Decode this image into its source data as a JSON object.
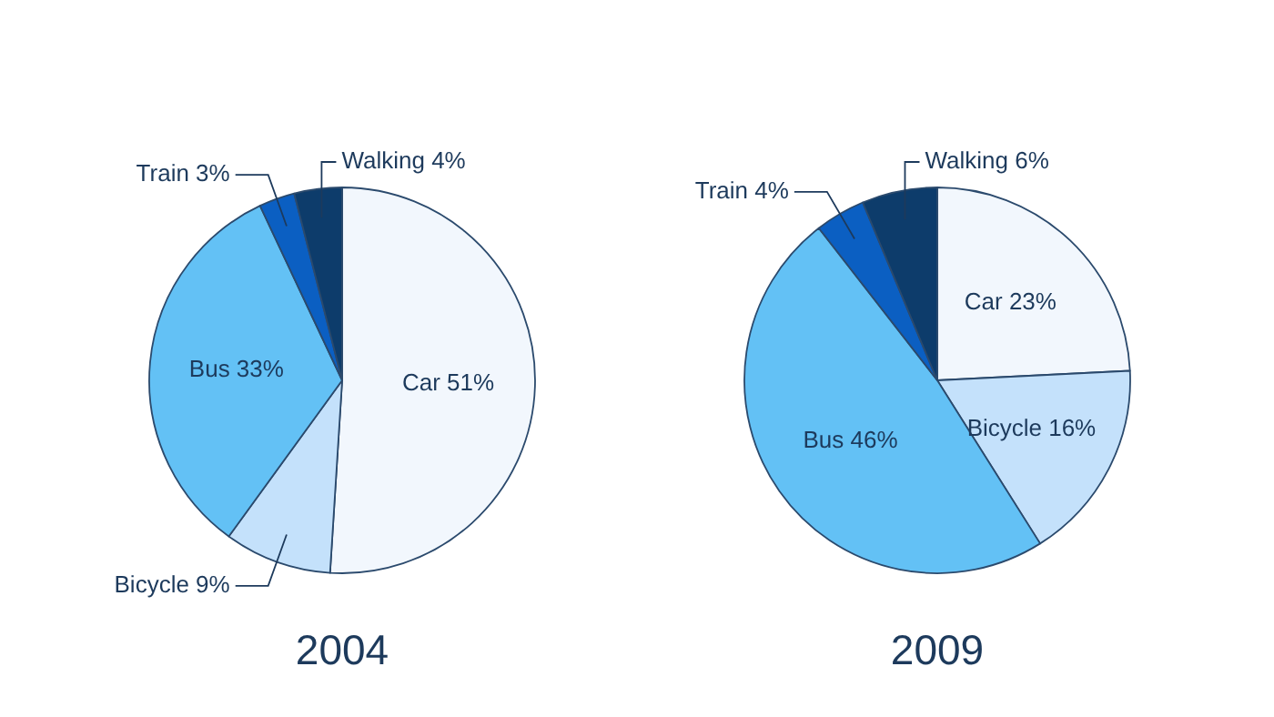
{
  "chart_data": [
    {
      "type": "pie",
      "title": "2004",
      "categories": [
        "Car",
        "Bicycle",
        "Bus",
        "Train",
        "Walking"
      ],
      "values": [
        51,
        9,
        33,
        3,
        4
      ],
      "value_labels": [
        "51%",
        "9%",
        "33%",
        "3%",
        "4%"
      ],
      "colors": [
        "#f2f7fd",
        "#c4e1fb",
        "#63c1f5",
        "#0b5fc2",
        "#0d3c6b"
      ]
    },
    {
      "type": "pie",
      "title": "2009",
      "categories": [
        "Car",
        "Bicycle",
        "Bus",
        "Train",
        "Walking"
      ],
      "values": [
        23,
        16,
        46,
        4,
        6
      ],
      "value_labels": [
        "23%",
        "16%",
        "46%",
        "4%",
        "6%"
      ],
      "colors": [
        "#f2f7fd",
        "#c4e1fb",
        "#63c1f5",
        "#0b5fc2",
        "#0d3c6b"
      ]
    }
  ]
}
